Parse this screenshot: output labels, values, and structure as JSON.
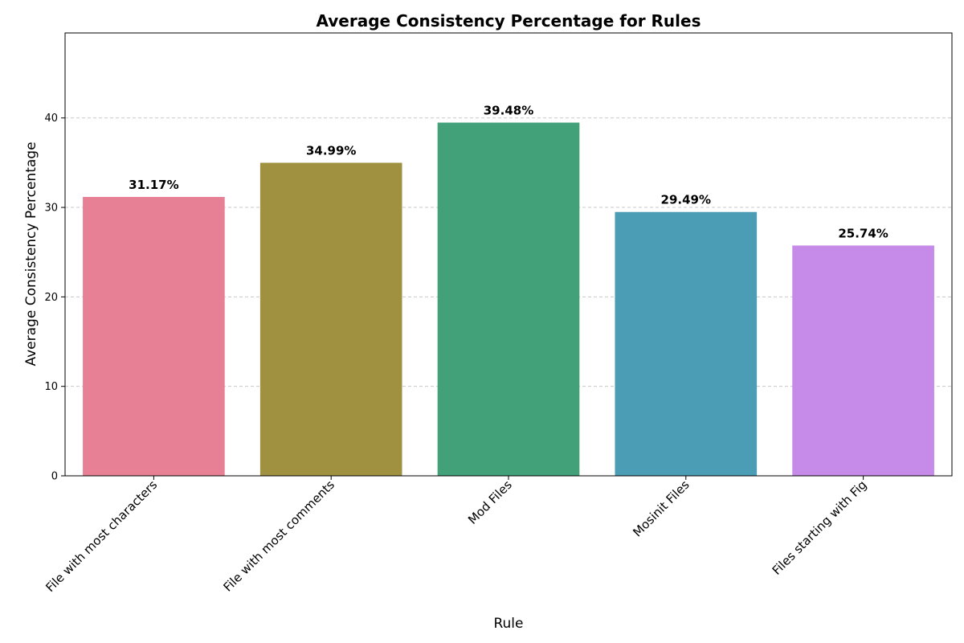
{
  "chart_data": {
    "type": "bar",
    "title": "Average Consistency Percentage for Rules",
    "xlabel": "Rule",
    "ylabel": "Average Consistency Percentage",
    "categories": [
      "File with most characters",
      "File with most comments",
      "Mod Files",
      "Mosinit Files",
      "Files starting with Fig"
    ],
    "values": [
      31.17,
      34.99,
      39.48,
      29.49,
      25.74
    ],
    "value_labels": [
      "31.17%",
      "34.99%",
      "39.48%",
      "29.49%",
      "25.74%"
    ],
    "colors": [
      "#e78094",
      "#a09140",
      "#43a17a",
      "#4a9db4",
      "#c68ae8"
    ],
    "yticks": [
      0,
      10,
      20,
      30,
      40
    ],
    "ylim": [
      0,
      49.5
    ],
    "grid": "y-dashed",
    "legend": "none"
  }
}
